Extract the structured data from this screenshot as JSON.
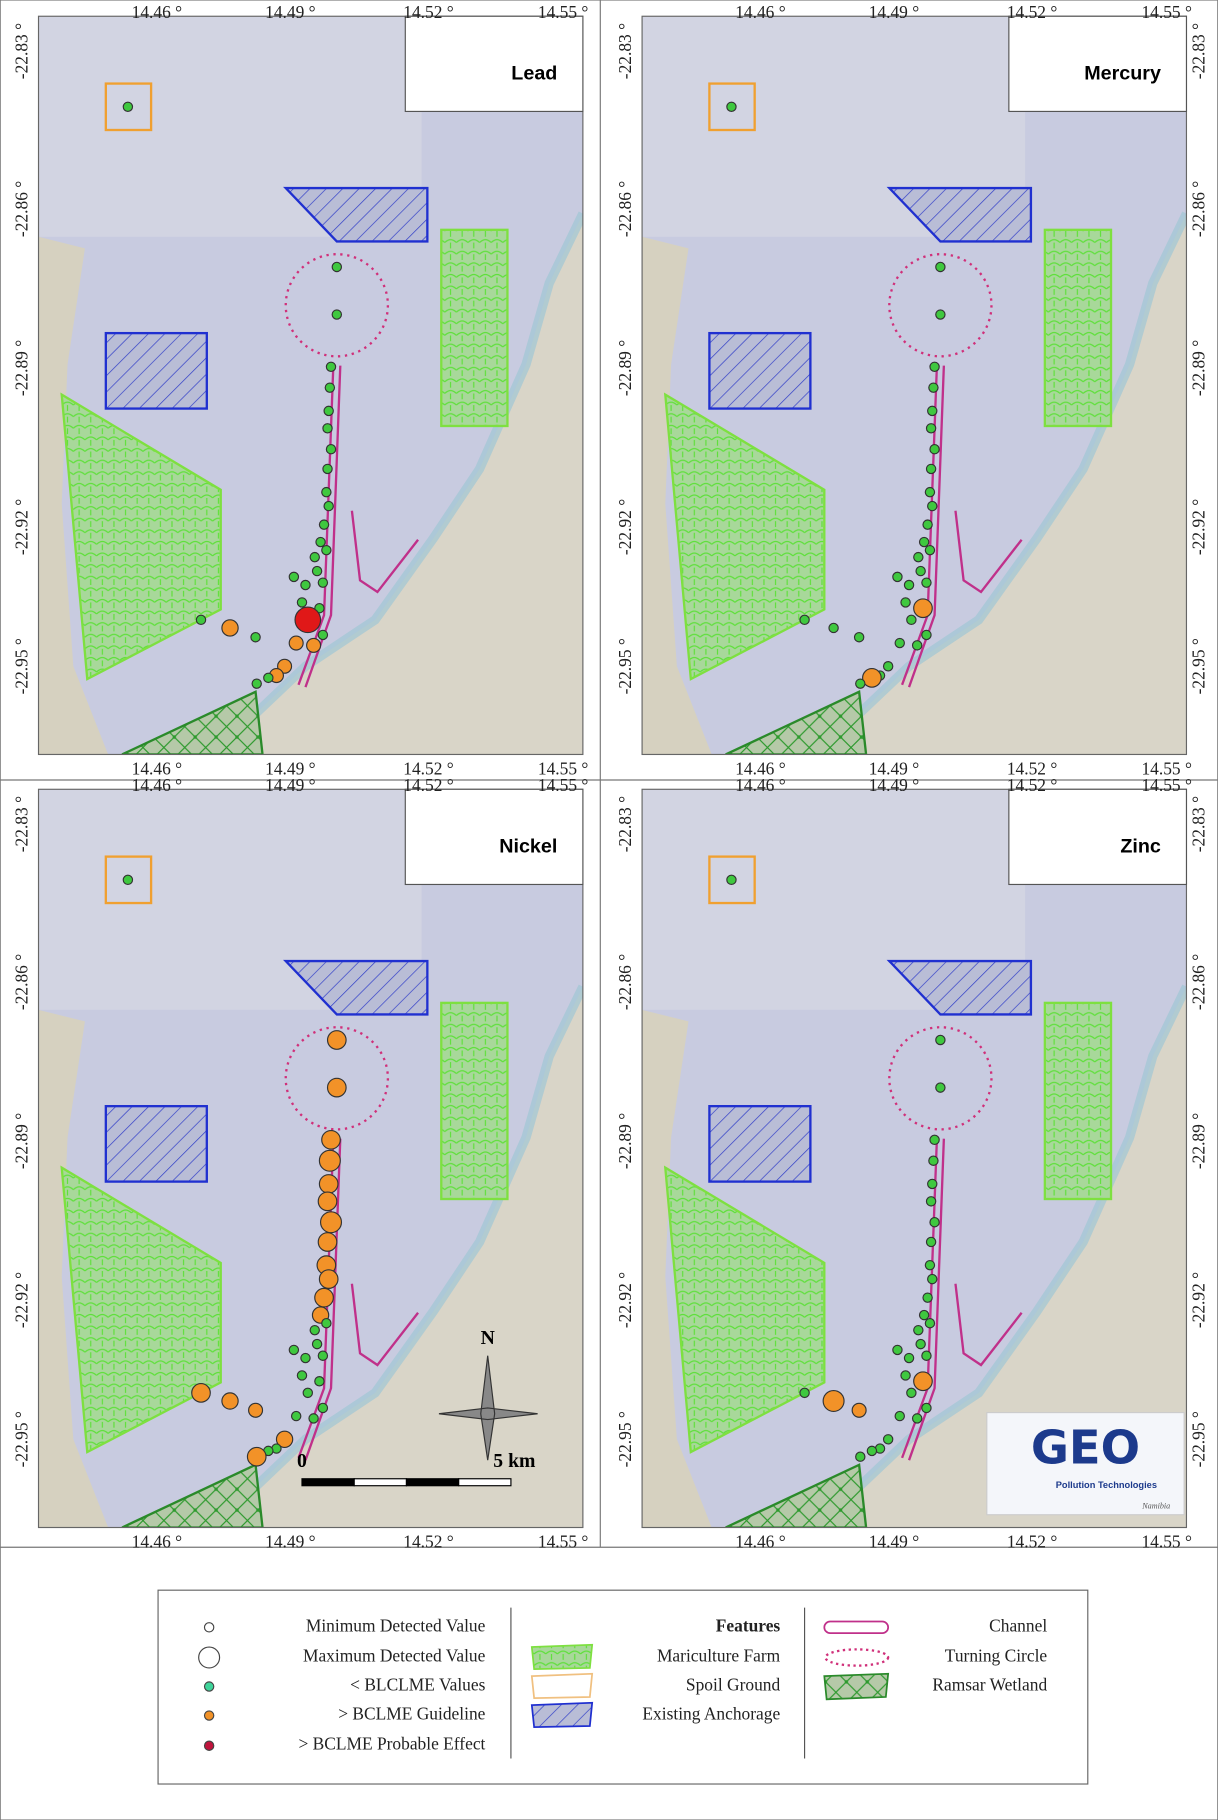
{
  "panels": [
    {
      "title": "Lead"
    },
    {
      "title": "Mercury"
    },
    {
      "title": "Nickel"
    },
    {
      "title": "Zinc"
    }
  ],
  "x_ticks": [
    "14.46 °",
    "14.49 °",
    "14.52 °",
    "14.55 °"
  ],
  "y_ticks": [
    "-22.83 °",
    "-22.86 °",
    "-22.89 °",
    "-22.92 °",
    "-22.95 °"
  ],
  "north": "N",
  "scale_bar": {
    "start": "0",
    "end": "5 km"
  },
  "logo": {
    "title": "GEO",
    "subtitle": "Pollution Technologies",
    "mark": "Namibia"
  },
  "legend": {
    "samples": [
      "Minimum Detected Value",
      "Maximum Detected Value",
      "< BLCLME Values",
      "> BCLME Guideline",
      "> BCLME Probable Effect"
    ],
    "features_title": "Features",
    "features": [
      "Mariculture Farm",
      "Spoil Ground",
      "Existing Anchorage"
    ],
    "lines": [
      "Channel",
      "Turning Circle",
      "Ramsar Wetland"
    ]
  }
}
